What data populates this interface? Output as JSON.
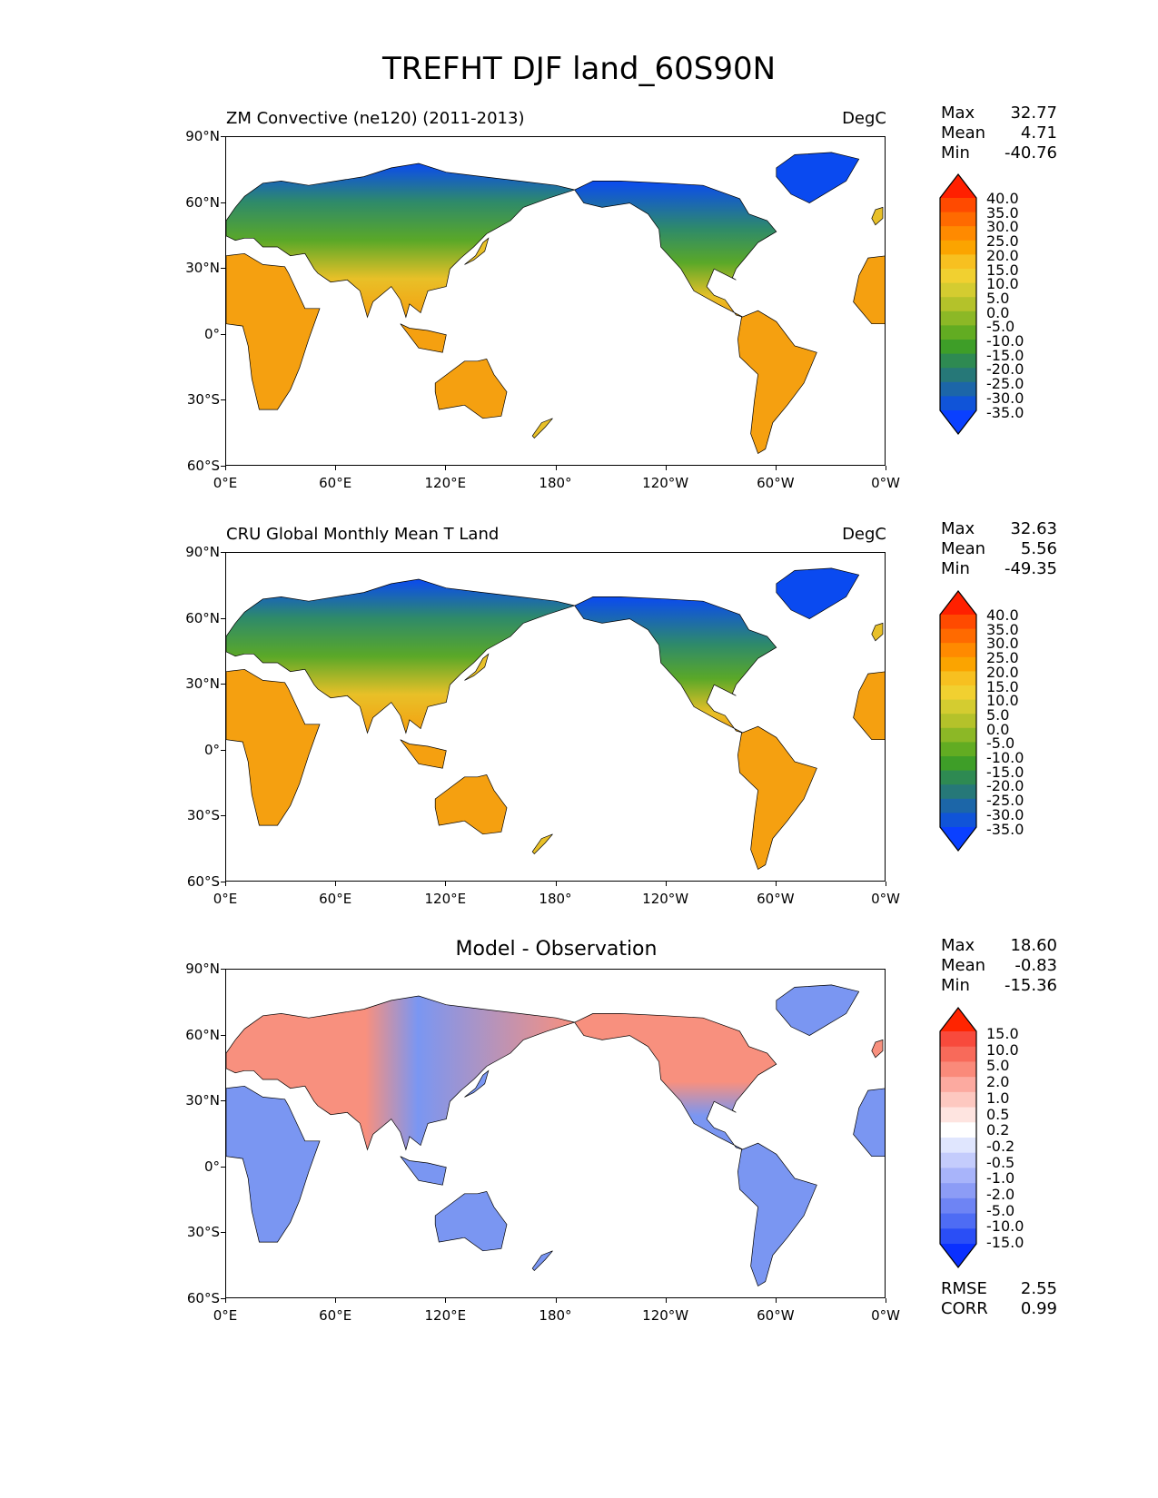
{
  "title": "TREFHT DJF land_60S90N",
  "panels": [
    {
      "left_title": "ZM Convective (ne120) (2011-2013)",
      "units": "DegC",
      "stats": [
        {
          "label": "Max",
          "value": "32.77"
        },
        {
          "label": "Mean",
          "value": "4.71"
        },
        {
          "label": "Min",
          "value": "-40.76"
        }
      ]
    },
    {
      "left_title": "CRU Global Monthly Mean T Land",
      "units": "DegC",
      "stats": [
        {
          "label": "Max",
          "value": "32.63"
        },
        {
          "label": "Mean",
          "value": "5.56"
        },
        {
          "label": "Min",
          "value": "-49.35"
        }
      ]
    },
    {
      "center_title": "Model - Observation",
      "stats": [
        {
          "label": "Max",
          "value": "18.60"
        },
        {
          "label": "Mean",
          "value": "-0.83"
        },
        {
          "label": "Min",
          "value": "-15.36"
        }
      ],
      "metrics": [
        {
          "label": "RMSE",
          "value": "2.55"
        },
        {
          "label": "CORR",
          "value": "0.99"
        }
      ]
    }
  ],
  "lat_ticks": [
    "90°N",
    "60°N",
    "30°N",
    "0°",
    "30°S",
    "60°S"
  ],
  "lon_ticks": [
    "0°E",
    "60°E",
    "120°E",
    "180°",
    "120°W",
    "60°W",
    "0°W"
  ],
  "temp_colorbar": {
    "labels": [
      "40.0",
      "35.0",
      "30.0",
      "25.0",
      "20.0",
      "15.0",
      "10.0",
      "5.0",
      "0.0",
      "-5.0",
      "-10.0",
      "-15.0",
      "-20.0",
      "-25.0",
      "-30.0",
      "-35.0"
    ],
    "colors": [
      "#ff2000",
      "#ff4a00",
      "#ff6a00",
      "#ff8a00",
      "#fba400",
      "#f7c020",
      "#f1d030",
      "#d4cc30",
      "#b4c22a",
      "#8cb826",
      "#62ac22",
      "#3e9e28",
      "#2e8a52",
      "#267878",
      "#1c66a8",
      "#1054d8",
      "#0a40ff"
    ]
  },
  "diff_colorbar": {
    "labels": [
      "15.0",
      "10.0",
      "5.0",
      "2.0",
      "1.0",
      "0.5",
      "0.2",
      "-0.2",
      "-0.5",
      "-1.0",
      "-2.0",
      "-5.0",
      "-10.0",
      "-15.0"
    ],
    "colors": [
      "#ff2400",
      "#f84a3c",
      "#f86a5a",
      "#fa8a7a",
      "#fcaaa0",
      "#fdc8c0",
      "#fee4e0",
      "#ffffff",
      "#e0e6fe",
      "#c4ccfc",
      "#a8b4fa",
      "#8c9cf6",
      "#6e84f4",
      "#4e6cf4",
      "#2a4ef6",
      "#0a30ff"
    ]
  },
  "land_colors": {
    "arctic": "#0a4af0",
    "boreal": "#2e8a6a",
    "temperate": "#5aa828",
    "warm": "#e8c028",
    "tropical": "#f5a010",
    "diff_warm": "#f8907e",
    "diff_cool": "#7a96f2"
  }
}
